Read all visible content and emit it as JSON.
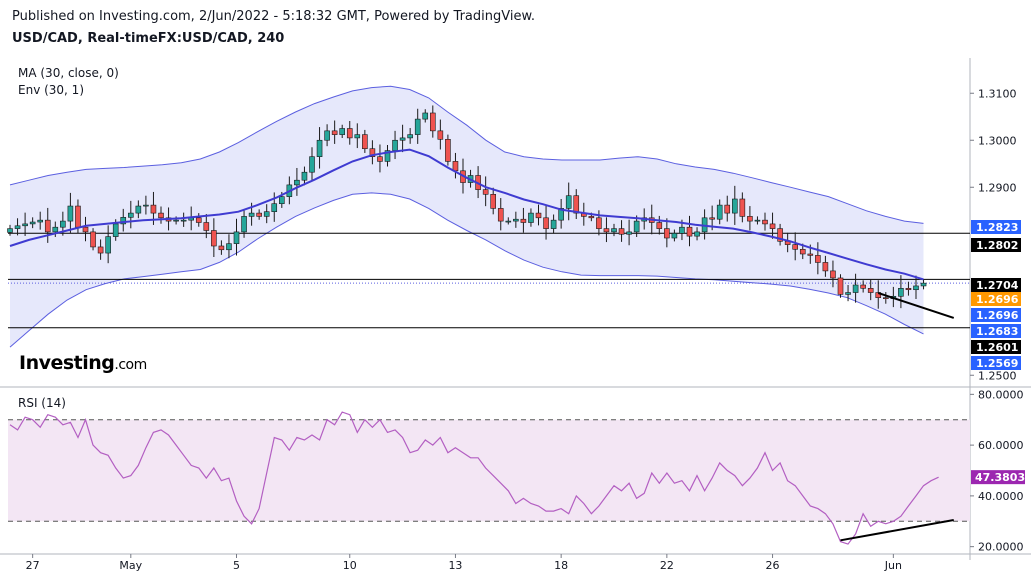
{
  "header": {
    "published": "Published on Investing.com, 2/Jun/2022 - 5:18:32 GMT, Powered by TradingView.",
    "symbol": "USD/CAD, Real-timeFX:USD/CAD, 240"
  },
  "indicators": {
    "ma": "MA (30, close, 0)",
    "env": "Env (30, 1)",
    "rsi": "RSI (14)"
  },
  "logo": {
    "main": "Investing",
    "suffix": ".com"
  },
  "colors": {
    "bull": "#26a69a",
    "bear": "#ef5350",
    "ma_line": "#3f3bd1",
    "band_fill": "#e6e8fb",
    "rsi_line": "#b35fc2",
    "rsi_fill": "#f3e6f4"
  },
  "chart_data": [
    {
      "type": "candlestick",
      "title": "USD/CAD, Real-timeFX:USD/CAD, 240",
      "y_ticks": [
        "1.3100",
        "1.3000",
        "1.2900",
        "1.2500"
      ],
      "ylim": [
        1.2475,
        1.3175
      ],
      "x_ticks": [
        "27",
        "May",
        "5",
        "10",
        "13",
        "18",
        "22",
        "26",
        "Jun"
      ],
      "close": [
        1.2812,
        1.2818,
        1.2822,
        1.2826,
        1.283,
        1.2805,
        1.2815,
        1.2828,
        1.286,
        1.2815,
        1.2805,
        1.2773,
        1.276,
        1.2795,
        1.2822,
        1.2836,
        1.2845,
        1.286,
        1.2862,
        1.2845,
        1.2835,
        1.2828,
        1.283,
        1.283,
        1.2835,
        1.2825,
        1.2808,
        1.2775,
        1.2767,
        1.278,
        1.2805,
        1.2838,
        1.2845,
        1.2838,
        1.2848,
        1.2865,
        1.288,
        1.2905,
        1.2915,
        1.2932,
        1.2965,
        1.3,
        1.302,
        1.3012,
        1.3025,
        1.3005,
        1.3012,
        1.2982,
        1.2965,
        1.2955,
        1.2978,
        1.3,
        1.3005,
        1.3012,
        1.3045,
        1.3058,
        1.302,
        1.3002,
        1.2955,
        1.2935,
        1.291,
        1.2925,
        1.2895,
        1.2885,
        1.2855,
        1.2828,
        1.2828,
        1.2832,
        1.2825,
        1.2845,
        1.2835,
        1.2812,
        1.283,
        1.2855,
        1.2882,
        1.2845,
        1.2838,
        1.2835,
        1.2812,
        1.2805,
        1.2812,
        1.28,
        1.2805,
        1.2828,
        1.2835,
        1.2825,
        1.2812,
        1.2792,
        1.2802,
        1.2815,
        1.2796,
        1.2805,
        1.2835,
        1.2832,
        1.2862,
        1.2845,
        1.2875,
        1.2838,
        1.2828,
        1.283,
        1.2822,
        1.2812,
        1.2785,
        1.2778,
        1.2768,
        1.2758,
        1.2755,
        1.274,
        1.2722,
        1.2707,
        1.2672,
        1.2676,
        1.2692,
        1.2685,
        1.2676,
        1.2665,
        1.2663,
        1.2668,
        1.2685,
        1.2682,
        1.269,
        1.2696
      ],
      "ma": [
        1.2775,
        1.2788,
        1.2798,
        1.2808,
        1.2818,
        1.2822,
        1.2826,
        1.283,
        1.2832,
        1.2834,
        1.2838,
        1.2842,
        1.2848,
        1.2862,
        1.2878,
        1.2898,
        1.2916,
        1.2936,
        1.2955,
        1.2968,
        1.2975,
        1.298,
        1.2966,
        1.2942,
        1.292,
        1.29,
        1.2888,
        1.2874,
        1.2864,
        1.2852,
        1.2846,
        1.284,
        1.2837,
        1.2834,
        1.283,
        1.2826,
        1.282,
        1.2816,
        1.2812,
        1.2804,
        1.2795,
        1.2785,
        1.2772,
        1.276,
        1.2748,
        1.2736,
        1.2725,
        1.2716,
        1.2704
      ],
      "env_upper": [
        1.2905,
        1.2915,
        1.2925,
        1.2932,
        1.2938,
        1.294,
        1.2942,
        1.2945,
        1.2948,
        1.2952,
        1.296,
        1.2975,
        1.2995,
        1.3018,
        1.304,
        1.306,
        1.3078,
        1.3092,
        1.3105,
        1.3112,
        1.3115,
        1.3108,
        1.309,
        1.306,
        1.3032,
        1.3,
        1.2975,
        1.2965,
        1.296,
        1.2958,
        1.2958,
        1.2958,
        1.2962,
        1.2965,
        1.296,
        1.295,
        1.2943,
        1.2938,
        1.293,
        1.292,
        1.291,
        1.29,
        1.289,
        1.288,
        1.2865,
        1.285,
        1.2838,
        1.2828,
        1.2823
      ],
      "env_lower": [
        1.256,
        1.2595,
        1.263,
        1.266,
        1.2682,
        1.2695,
        1.2705,
        1.271,
        1.2715,
        1.272,
        1.2725,
        1.274,
        1.2762,
        1.279,
        1.2815,
        1.2838,
        1.2856,
        1.2872,
        1.2885,
        1.2888,
        1.2885,
        1.2875,
        1.2855,
        1.283,
        1.2808,
        1.2788,
        1.2765,
        1.2745,
        1.273,
        1.272,
        1.2713,
        1.2712,
        1.2712,
        1.2712,
        1.2711,
        1.2708,
        1.2705,
        1.2703,
        1.27,
        1.2697,
        1.2694,
        1.269,
        1.2683,
        1.2675,
        1.2665,
        1.2648,
        1.263,
        1.2608,
        1.2588
      ],
      "price_labels": [
        {
          "text": "1.2823",
          "value": 1.2823,
          "bg": "#2962ff",
          "fg": "#ffffff"
        },
        {
          "text": "1.2802",
          "value": 1.2802,
          "bg": "#000000",
          "fg": "#ffffff"
        },
        {
          "text": "1.2704",
          "value": 1.2704,
          "bg": "#000000",
          "fg": "#ffffff"
        },
        {
          "text": "1.2696",
          "value": 1.2696,
          "bg": "#ff9800",
          "fg": "#ffffff"
        },
        {
          "text": "1.2696",
          "value": 1.2696,
          "bg": "#2962ff",
          "fg": "#ffffff"
        },
        {
          "text": "1.2683",
          "value": 1.2683,
          "bg": "#2962ff",
          "fg": "#ffffff"
        },
        {
          "text": "1.2601",
          "value": 1.2601,
          "bg": "#000000",
          "fg": "#ffffff"
        },
        {
          "text": "1.2569",
          "value": 1.2569,
          "bg": "#2962ff",
          "fg": "#ffffff"
        }
      ],
      "horizontal_lines": [
        1.2802,
        1.2704,
        1.2601
      ],
      "trendline": {
        "from": {
          "x": 115,
          "y": 1.2675
        },
        "to": {
          "x": 125,
          "y": 1.2622
        }
      }
    },
    {
      "type": "line",
      "title": "RSI (14)",
      "y_ticks": [
        "80.0000",
        "60.0000",
        "40.0000",
        "20.0000"
      ],
      "ylim": [
        17.5,
        82.5
      ],
      "bands": [
        30,
        70
      ],
      "current": "47.3803",
      "values": [
        68,
        66,
        71,
        70,
        67,
        72,
        71,
        68,
        69,
        63,
        70,
        60,
        57,
        56,
        51,
        47,
        48,
        52,
        59,
        65,
        66,
        64,
        60,
        56,
        52,
        51,
        47,
        51,
        46,
        47,
        38,
        32,
        29,
        35,
        49,
        63,
        62,
        58,
        63,
        62,
        64,
        62,
        70,
        68,
        73,
        72,
        65,
        70,
        67,
        70,
        65,
        66,
        63,
        57,
        58,
        62,
        60,
        63,
        57,
        59,
        57,
        55,
        55,
        51,
        48,
        45,
        42,
        37,
        39,
        37,
        36,
        34,
        34,
        35,
        33,
        40,
        37,
        33,
        36,
        40,
        44,
        42,
        45,
        39,
        41,
        49,
        45,
        49,
        45,
        46,
        42,
        48,
        42,
        47,
        53,
        50,
        48,
        44,
        47,
        51,
        57,
        50,
        53,
        46,
        44,
        40,
        36,
        35,
        33,
        29,
        22,
        21,
        25,
        33,
        28,
        30,
        29,
        30,
        32,
        36,
        40,
        44,
        46,
        47.38
      ],
      "trendline": {
        "from": {
          "x": 110,
          "y": 22.5
        },
        "to": {
          "x": 125,
          "y": 30.5
        }
      }
    }
  ]
}
